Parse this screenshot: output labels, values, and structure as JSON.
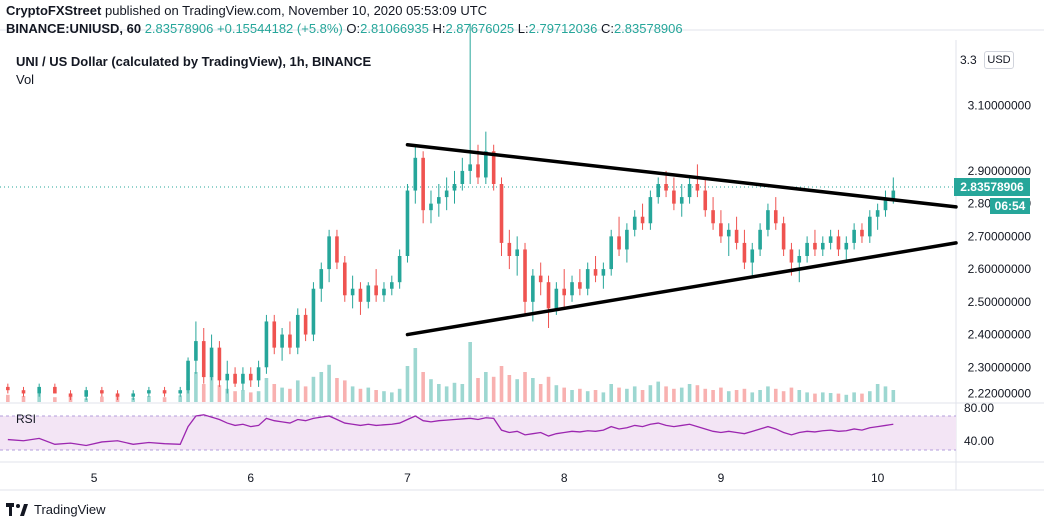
{
  "header": {
    "publisher": "CryptoFXStreet",
    "published_text": "published on TradingView.com, November 10, 2020 05:53:09 UTC"
  },
  "ohlc": {
    "symbol_line": "BINANCE:UNIUSD, 60",
    "last": "2.83578906",
    "change": "+0.15544182 (+5.8%)",
    "o_label": "O:",
    "o": "2.81066935",
    "h_label": "H:",
    "h": "2.87676025",
    "l_label": "L:",
    "l": "2.79712036",
    "c_label": "C:",
    "c": "2.83578906"
  },
  "legend": {
    "title": "UNI / US Dollar (calculated by TradingView), 1h, BINANCE",
    "vol": "Vol",
    "rsi": "RSI"
  },
  "axis": {
    "currency": "USD",
    "last_price": "2.83578906",
    "countdown": "06:54"
  },
  "footer": {
    "brand": "TradingView"
  },
  "colors": {
    "up": "#26a69a",
    "down": "#ef5350",
    "rsi_line": "#9c27b0",
    "rsi_band": "#f3e5f5"
  },
  "chart_data": {
    "type": "candlestick",
    "title": "UNI / US Dollar (calculated by TradingView), 1h, BINANCE",
    "y_ticks": [
      "3.10000000",
      "2.90000000",
      "2.80000000",
      "2.70000000",
      "2.60000000",
      "2.50000000",
      "2.40000000",
      "2.30000000",
      "2.22000000"
    ],
    "y_tick_values": [
      3.1,
      2.9,
      2.8,
      2.7,
      2.6,
      2.5,
      2.4,
      2.3,
      2.22
    ],
    "y_top_label": "3.3",
    "ylim": [
      2.2,
      3.3
    ],
    "x_ticks": [
      "5",
      "6",
      "7",
      "8",
      "9",
      "10"
    ],
    "rsi_ticks": [
      "80.00",
      "40.00"
    ],
    "rsi_ylim": [
      0,
      100
    ],
    "trendlines": [
      {
        "name": "upper",
        "from": [
          7.0,
          2.98
        ],
        "to": [
          10.5,
          2.79
        ]
      },
      {
        "name": "lower",
        "from": [
          7.0,
          2.4
        ],
        "to": [
          10.5,
          2.68
        ]
      }
    ],
    "last_price": 2.83578906,
    "x_range": [
      4.4,
      10.5
    ],
    "candles": [
      [
        4.45,
        2.24,
        2.25,
        2.22,
        2.23
      ],
      [
        4.55,
        2.23,
        2.24,
        2.21,
        2.22
      ],
      [
        4.65,
        2.22,
        2.25,
        2.21,
        2.24
      ],
      [
        4.75,
        2.24,
        2.25,
        2.22,
        2.22
      ],
      [
        4.85,
        2.22,
        2.23,
        2.2,
        2.21
      ],
      [
        4.95,
        2.21,
        2.24,
        2.2,
        2.23
      ],
      [
        5.05,
        2.23,
        2.24,
        2.21,
        2.22
      ],
      [
        5.15,
        2.22,
        2.23,
        2.2,
        2.21
      ],
      [
        5.25,
        2.21,
        2.23,
        2.2,
        2.22
      ],
      [
        5.35,
        2.22,
        2.24,
        2.21,
        2.23
      ],
      [
        5.45,
        2.23,
        2.24,
        2.21,
        2.22
      ],
      [
        5.55,
        2.22,
        2.24,
        2.21,
        2.23
      ],
      [
        5.6,
        2.23,
        2.33,
        2.22,
        2.32
      ],
      [
        5.65,
        2.32,
        2.44,
        2.28,
        2.38
      ],
      [
        5.7,
        2.38,
        2.42,
        2.25,
        2.27
      ],
      [
        5.75,
        2.27,
        2.4,
        2.26,
        2.36
      ],
      [
        5.8,
        2.36,
        2.38,
        2.24,
        2.26
      ],
      [
        5.85,
        2.26,
        2.32,
        2.22,
        2.28
      ],
      [
        5.9,
        2.28,
        2.3,
        2.24,
        2.25
      ],
      [
        5.95,
        2.25,
        2.3,
        2.23,
        2.28
      ],
      [
        6.0,
        2.28,
        2.3,
        2.24,
        2.26
      ],
      [
        6.05,
        2.26,
        2.32,
        2.24,
        2.3
      ],
      [
        6.1,
        2.3,
        2.46,
        2.28,
        2.44
      ],
      [
        6.15,
        2.44,
        2.46,
        2.34,
        2.36
      ],
      [
        6.2,
        2.36,
        2.42,
        2.32,
        2.4
      ],
      [
        6.25,
        2.4,
        2.44,
        2.34,
        2.36
      ],
      [
        6.3,
        2.36,
        2.48,
        2.34,
        2.46
      ],
      [
        6.35,
        2.46,
        2.48,
        2.38,
        2.4
      ],
      [
        6.4,
        2.4,
        2.56,
        2.38,
        2.54
      ],
      [
        6.45,
        2.54,
        2.62,
        2.5,
        2.6
      ],
      [
        6.5,
        2.6,
        2.72,
        2.56,
        2.7
      ],
      [
        6.55,
        2.7,
        2.72,
        2.6,
        2.62
      ],
      [
        6.6,
        2.62,
        2.64,
        2.5,
        2.52
      ],
      [
        6.65,
        2.52,
        2.58,
        2.48,
        2.54
      ],
      [
        6.7,
        2.54,
        2.56,
        2.46,
        2.5
      ],
      [
        6.75,
        2.5,
        2.56,
        2.48,
        2.55
      ],
      [
        6.8,
        2.55,
        2.6,
        2.5,
        2.52
      ],
      [
        6.85,
        2.52,
        2.56,
        2.5,
        2.54
      ],
      [
        6.9,
        2.54,
        2.58,
        2.52,
        2.56
      ],
      [
        6.95,
        2.56,
        2.66,
        2.54,
        2.64
      ],
      [
        7.0,
        2.64,
        2.86,
        2.62,
        2.84
      ],
      [
        7.05,
        2.84,
        2.98,
        2.8,
        2.94
      ],
      [
        7.1,
        2.94,
        2.96,
        2.74,
        2.78
      ],
      [
        7.15,
        2.78,
        2.84,
        2.74,
        2.8
      ],
      [
        7.2,
        2.8,
        2.86,
        2.76,
        2.82
      ],
      [
        7.25,
        2.82,
        2.88,
        2.78,
        2.84
      ],
      [
        7.3,
        2.84,
        2.9,
        2.8,
        2.86
      ],
      [
        7.35,
        2.86,
        2.94,
        2.84,
        2.9
      ],
      [
        7.4,
        2.9,
        3.35,
        2.86,
        2.92
      ],
      [
        7.45,
        2.92,
        2.98,
        2.86,
        2.88
      ],
      [
        7.5,
        2.88,
        3.02,
        2.86,
        2.96
      ],
      [
        7.55,
        2.96,
        2.98,
        2.84,
        2.86
      ],
      [
        7.6,
        2.86,
        2.88,
        2.64,
        2.68
      ],
      [
        7.65,
        2.68,
        2.72,
        2.6,
        2.64
      ],
      [
        7.7,
        2.64,
        2.7,
        2.58,
        2.66
      ],
      [
        7.75,
        2.66,
        2.68,
        2.46,
        2.5
      ],
      [
        7.8,
        2.5,
        2.6,
        2.44,
        2.58
      ],
      [
        7.85,
        2.58,
        2.62,
        2.52,
        2.56
      ],
      [
        7.9,
        2.56,
        2.58,
        2.42,
        2.48
      ],
      [
        7.95,
        2.48,
        2.56,
        2.46,
        2.54
      ],
      [
        8.0,
        2.54,
        2.6,
        2.48,
        2.52
      ],
      [
        8.05,
        2.52,
        2.58,
        2.5,
        2.56
      ],
      [
        8.1,
        2.56,
        2.6,
        2.52,
        2.54
      ],
      [
        8.15,
        2.54,
        2.62,
        2.52,
        2.6
      ],
      [
        8.2,
        2.6,
        2.64,
        2.56,
        2.58
      ],
      [
        8.25,
        2.58,
        2.62,
        2.54,
        2.6
      ],
      [
        8.3,
        2.6,
        2.72,
        2.58,
        2.7
      ],
      [
        8.35,
        2.7,
        2.76,
        2.64,
        2.66
      ],
      [
        8.4,
        2.66,
        2.74,
        2.62,
        2.72
      ],
      [
        8.45,
        2.72,
        2.78,
        2.7,
        2.76
      ],
      [
        8.5,
        2.76,
        2.8,
        2.72,
        2.74
      ],
      [
        8.55,
        2.74,
        2.84,
        2.72,
        2.82
      ],
      [
        8.6,
        2.82,
        2.88,
        2.8,
        2.86
      ],
      [
        8.65,
        2.86,
        2.9,
        2.82,
        2.84
      ],
      [
        8.7,
        2.84,
        2.88,
        2.78,
        2.8
      ],
      [
        8.75,
        2.8,
        2.86,
        2.76,
        2.82
      ],
      [
        8.8,
        2.82,
        2.88,
        2.8,
        2.86
      ],
      [
        8.85,
        2.86,
        2.92,
        2.82,
        2.84
      ],
      [
        8.9,
        2.84,
        2.88,
        2.76,
        2.78
      ],
      [
        8.95,
        2.78,
        2.82,
        2.72,
        2.74
      ],
      [
        9.0,
        2.74,
        2.78,
        2.68,
        2.7
      ],
      [
        9.05,
        2.7,
        2.74,
        2.64,
        2.72
      ],
      [
        9.1,
        2.72,
        2.76,
        2.66,
        2.68
      ],
      [
        9.15,
        2.68,
        2.72,
        2.6,
        2.62
      ],
      [
        9.2,
        2.62,
        2.68,
        2.58,
        2.66
      ],
      [
        9.25,
        2.66,
        2.74,
        2.64,
        2.72
      ],
      [
        9.3,
        2.72,
        2.8,
        2.7,
        2.78
      ],
      [
        9.35,
        2.78,
        2.82,
        2.72,
        2.74
      ],
      [
        9.4,
        2.74,
        2.76,
        2.64,
        2.66
      ],
      [
        9.45,
        2.66,
        2.68,
        2.58,
        2.62
      ],
      [
        9.5,
        2.62,
        2.66,
        2.56,
        2.64
      ],
      [
        9.55,
        2.64,
        2.7,
        2.62,
        2.68
      ],
      [
        9.6,
        2.68,
        2.72,
        2.64,
        2.66
      ],
      [
        9.65,
        2.66,
        2.7,
        2.64,
        2.68
      ],
      [
        9.7,
        2.68,
        2.72,
        2.66,
        2.7
      ],
      [
        9.75,
        2.7,
        2.72,
        2.64,
        2.66
      ],
      [
        9.8,
        2.66,
        2.7,
        2.62,
        2.68
      ],
      [
        9.85,
        2.68,
        2.74,
        2.66,
        2.72
      ],
      [
        9.9,
        2.72,
        2.74,
        2.68,
        2.7
      ],
      [
        9.95,
        2.7,
        2.78,
        2.68,
        2.76
      ],
      [
        10.0,
        2.76,
        2.8,
        2.72,
        2.78
      ],
      [
        10.05,
        2.78,
        2.84,
        2.76,
        2.81
      ],
      [
        10.1,
        2.81,
        2.88,
        2.8,
        2.84
      ]
    ],
    "volumes": [
      0.12,
      0.1,
      0.14,
      0.08,
      0.1,
      0.06,
      0.09,
      0.12,
      0.07,
      0.1,
      0.08,
      0.11,
      0.35,
      0.5,
      0.3,
      0.42,
      0.28,
      0.22,
      0.18,
      0.2,
      0.16,
      0.18,
      0.4,
      0.3,
      0.24,
      0.22,
      0.36,
      0.26,
      0.42,
      0.5,
      0.62,
      0.4,
      0.36,
      0.26,
      0.22,
      0.24,
      0.2,
      0.18,
      0.16,
      0.22,
      0.6,
      0.9,
      0.5,
      0.38,
      0.3,
      0.26,
      0.32,
      0.3,
      1.0,
      0.4,
      0.5,
      0.42,
      0.6,
      0.45,
      0.38,
      0.5,
      0.4,
      0.3,
      0.42,
      0.28,
      0.24,
      0.2,
      0.22,
      0.18,
      0.2,
      0.16,
      0.3,
      0.24,
      0.22,
      0.26,
      0.2,
      0.28,
      0.34,
      0.26,
      0.22,
      0.24,
      0.3,
      0.28,
      0.22,
      0.2,
      0.24,
      0.18,
      0.2,
      0.22,
      0.16,
      0.2,
      0.26,
      0.22,
      0.18,
      0.24,
      0.2,
      0.16,
      0.14,
      0.16,
      0.15,
      0.14,
      0.12,
      0.16,
      0.14,
      0.18,
      0.3,
      0.26,
      0.2
    ],
    "rsi": [
      38,
      36,
      40,
      30,
      32,
      28,
      34,
      36,
      30,
      33,
      31,
      30,
      60,
      78,
      80,
      76,
      72,
      66,
      62,
      64,
      60,
      62,
      74,
      70,
      68,
      66,
      72,
      70,
      74,
      76,
      78,
      72,
      66,
      64,
      62,
      64,
      62,
      63,
      64,
      66,
      72,
      78,
      70,
      68,
      70,
      71,
      72,
      73,
      74,
      72,
      75,
      74,
      54,
      50,
      52,
      46,
      48,
      50,
      44,
      48,
      50,
      52,
      51,
      53,
      52,
      54,
      60,
      56,
      58,
      62,
      60,
      64,
      66,
      62,
      60,
      62,
      64,
      60,
      56,
      52,
      50,
      52,
      50,
      48,
      52,
      56,
      60,
      56,
      50,
      46,
      50,
      52,
      51,
      53,
      54,
      52,
      53,
      56,
      54,
      58,
      60,
      62,
      64
    ]
  }
}
